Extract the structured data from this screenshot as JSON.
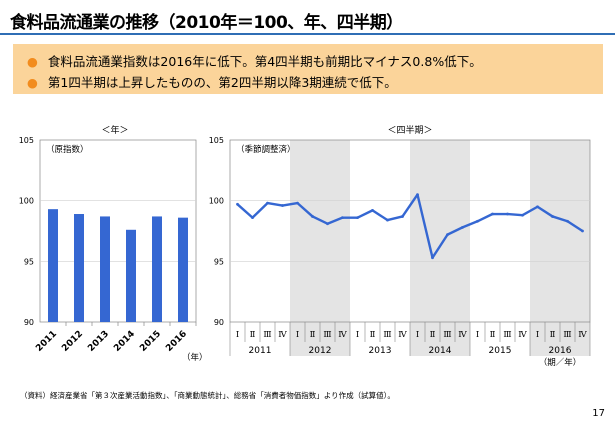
{
  "title": "食料品流通業の推移（2010年＝100、年、四半期）",
  "summary": [
    "食料品流通業指数は2016年に低下。第4四半期も前期比マイナス0.8%低下。",
    "第1四半期は上昇したものの、第2四半期以降3期連続で低下。"
  ],
  "colors": {
    "bar": "#3567d2",
    "line": "#3567d2",
    "shade": "#e4e4e4",
    "accent": "#f28c1e",
    "summary_bg": "#fbd49a",
    "rule": "#2f6eb5"
  },
  "source": "（資料）経済産業省「第３次産業活動指数」、「商業動態統計」、総務省「消費者物価指数」より作成（試算値）。",
  "page_number": "17",
  "chart_data": [
    {
      "type": "bar",
      "title": "＜年＞",
      "annotation": "（原指数）",
      "xunit": "（年）",
      "categories": [
        "2011",
        "2012",
        "2013",
        "2014",
        "2015",
        "2016"
      ],
      "values": [
        99.3,
        98.9,
        98.7,
        97.6,
        98.7,
        98.6
      ],
      "ylim": [
        90,
        105
      ],
      "yticks": [
        "90",
        "95",
        "100",
        "105"
      ]
    },
    {
      "type": "line",
      "title": "＜四半期＞",
      "annotation": "（季節調整済）",
      "xunit": "（期／年）",
      "quarters": [
        "Ⅰ",
        "Ⅱ",
        "Ⅲ",
        "Ⅳ"
      ],
      "years": [
        "2011",
        "2012",
        "2013",
        "2014",
        "2015",
        "2016"
      ],
      "shaded_years": [
        "2012",
        "2014",
        "2016"
      ],
      "values": [
        99.7,
        98.6,
        99.8,
        99.6,
        99.8,
        98.7,
        98.1,
        98.6,
        98.6,
        99.2,
        98.4,
        98.7,
        100.5,
        95.3,
        97.2,
        97.8,
        98.3,
        98.9,
        98.9,
        98.8,
        99.5,
        98.7,
        98.3,
        97.5
      ],
      "ylim": [
        90,
        105
      ],
      "yticks": [
        "90",
        "95",
        "100",
        "105"
      ]
    }
  ]
}
